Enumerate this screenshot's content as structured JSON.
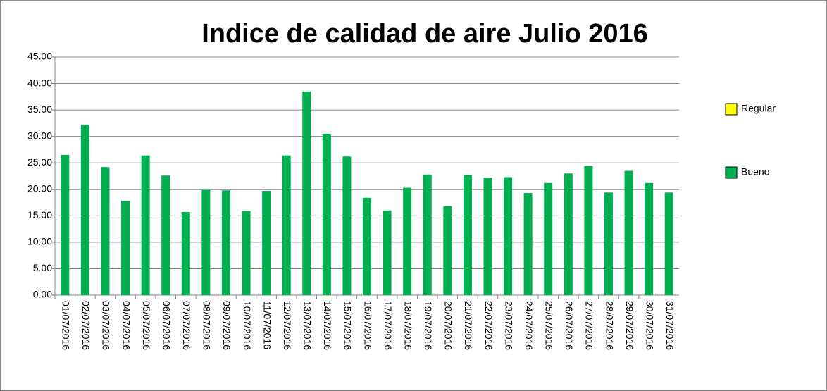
{
  "chart_data": {
    "type": "bar",
    "title": "Indice de calidad de aire Julio 2016",
    "categories": [
      "01/07/2016",
      "02/07/2016",
      "03/07/2016",
      "04/07/2016",
      "05/07/2016",
      "06/07/2016",
      "07/07/2016",
      "08/07/2016",
      "09/07/2016",
      "10/07/2016",
      "11/07/2016",
      "12/07/2016",
      "13/07/2016",
      "14/07/2016",
      "15/07/2016",
      "16/07/2016",
      "17/07/2016",
      "18/07/2016",
      "19/07/2016",
      "20/07/2016",
      "21/07/2016",
      "22/07/2016",
      "23/07/2016",
      "24/07/2016",
      "25/07/2016",
      "26/07/2016",
      "27/07/2016",
      "28/07/2016",
      "29/07/2016",
      "30/07/2016",
      "31/07/2016"
    ],
    "series": [
      {
        "name": "Regular",
        "color": "#ffff00",
        "values": [
          null,
          null,
          null,
          null,
          null,
          null,
          null,
          null,
          null,
          null,
          null,
          null,
          null,
          null,
          null,
          null,
          null,
          null,
          null,
          null,
          null,
          null,
          null,
          null,
          null,
          null,
          null,
          null,
          null,
          null,
          null
        ]
      },
      {
        "name": "Bueno",
        "color": "#00b050",
        "values": [
          26.5,
          32.2,
          24.2,
          17.8,
          26.4,
          22.6,
          15.7,
          20.0,
          19.8,
          15.9,
          19.7,
          26.4,
          38.5,
          30.5,
          26.2,
          18.4,
          16.0,
          20.3,
          22.8,
          16.8,
          22.7,
          22.2,
          22.3,
          19.3,
          21.2,
          23.0,
          24.4,
          19.4,
          23.5,
          21.2,
          19.4
        ]
      }
    ],
    "ylim": [
      0,
      45
    ],
    "yticks": [
      {
        "value": 0,
        "label": "0.00"
      },
      {
        "value": 5,
        "label": "5.00"
      },
      {
        "value": 10,
        "label": "10.00"
      },
      {
        "value": 15,
        "label": "15.00"
      },
      {
        "value": 20,
        "label": "20.00"
      },
      {
        "value": 25,
        "label": "25.00"
      },
      {
        "value": 30,
        "label": "30.00"
      },
      {
        "value": 35,
        "label": "35.00"
      },
      {
        "value": 40,
        "label": "40.00"
      },
      {
        "value": 45,
        "label": "45.00"
      }
    ],
    "grid": true
  }
}
